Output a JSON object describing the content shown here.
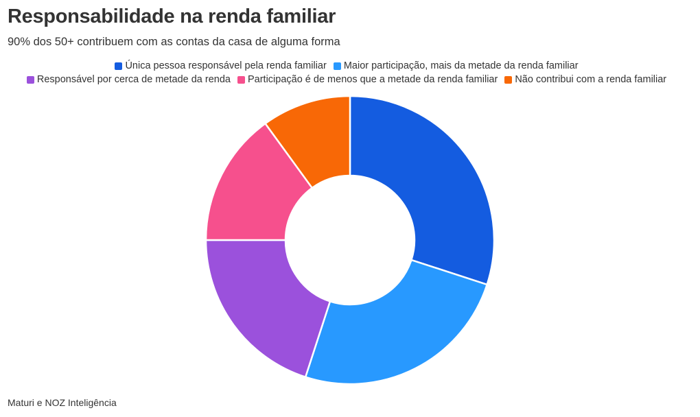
{
  "header": {
    "title": "Responsabilidade na renda familiar",
    "subtitle": "90% dos 50+ contribuem com as contas da casa de alguma forma"
  },
  "legend_rows": [
    [
      0,
      1
    ],
    [
      2,
      3,
      4
    ]
  ],
  "chart_data": {
    "type": "pie",
    "donut": true,
    "categories": [
      "Única pessoa responsável pela renda familiar",
      "Maior participação, mais da metade da renda familiar",
      "Responsável por cerca de metade da renda",
      "Participação é de menos que a metade da renda familiar",
      "Não contribui com a renda familiar"
    ],
    "values": [
      30,
      25,
      20,
      15,
      10
    ],
    "colors": [
      "#145ce0",
      "#2899ff",
      "#9b51dc",
      "#f6508d",
      "#f86806"
    ],
    "legend_position": "top-center"
  },
  "footer": {
    "source": "Maturi e NOZ Inteligência"
  }
}
